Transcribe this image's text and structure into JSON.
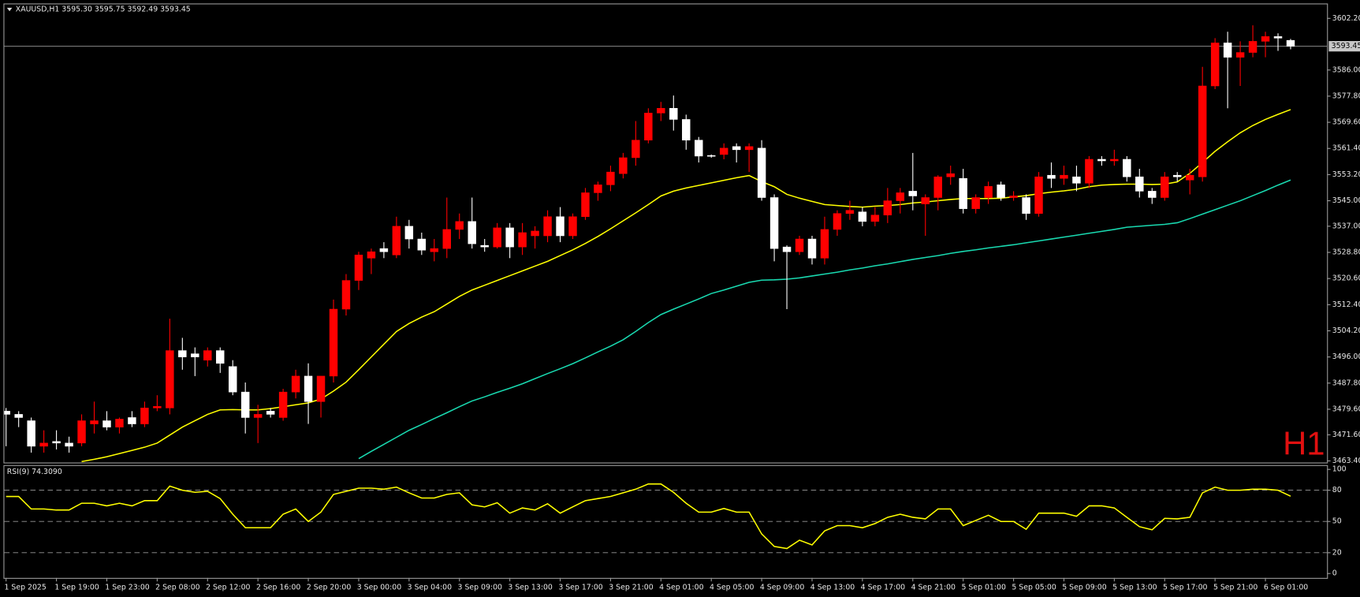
{
  "chart_data": [
    {
      "type": "candlestick",
      "title": "XAUUSD,H1  3595.30 3595.75 3592.49 3593.45",
      "watermark": "H1",
      "up_color": "#ff0000",
      "down_color": "#ffffff",
      "categories": [
        "1 Sep 2025",
        null,
        null,
        null,
        "1 Sep 19:00",
        null,
        null,
        null,
        "1 Sep 23:00",
        null,
        null,
        null,
        "2 Sep 08:00",
        null,
        null,
        null,
        "2 Sep 12:00",
        null,
        null,
        null,
        "2 Sep 16:00",
        null,
        null,
        null,
        "2 Sep 20:00",
        null,
        null,
        null,
        "3 Sep 00:00",
        null,
        null,
        null,
        "3 Sep 04:00",
        null,
        null,
        null,
        "3 Sep 09:00",
        null,
        null,
        null,
        "3 Sep 13:00",
        null,
        null,
        null,
        "3 Sep 17:00",
        null,
        null,
        null,
        "3 Sep 21:00",
        null,
        null,
        null,
        "4 Sep 01:00",
        null,
        null,
        null,
        "4 Sep 05:00",
        null,
        null,
        null,
        "4 Sep 09:00",
        null,
        null,
        null,
        "4 Sep 13:00",
        null,
        null,
        null,
        "4 Sep 17:00",
        null,
        null,
        null,
        "4 Sep 21:00",
        null,
        null,
        null,
        "5 Sep 01:00",
        null,
        null,
        null,
        "5 Sep 05:00",
        null,
        null,
        null,
        "5 Sep 09:00",
        null,
        null,
        null,
        "5 Sep 13:00",
        null,
        null,
        null,
        "5 Sep 17:00",
        null,
        null,
        null,
        "5 Sep 21:00",
        null,
        null,
        null,
        "6 Sep 01:00",
        null,
        null
      ],
      "open": [
        3479,
        3478,
        3476,
        3468,
        3469.5,
        3469,
        3469,
        3475,
        3476,
        3474,
        3477,
        3475,
        3480,
        3480,
        3498,
        3497,
        3495,
        3498,
        3493,
        3485,
        3477,
        3479,
        3477,
        3485,
        3490,
        3482,
        3490,
        3511,
        3520,
        3527,
        3530,
        3528,
        3537,
        3533,
        3529,
        3530,
        3536,
        3538.5,
        3531,
        3530.5,
        3536.5,
        3530.5,
        3534,
        3534,
        3540,
        3534,
        3540,
        3547.5,
        3550,
        3553.5,
        3558.5,
        3564,
        3572.5,
        3574,
        3570.5,
        3564,
        3559.2,
        3559.5,
        3562,
        3561,
        3561.5,
        3546,
        3530.5,
        3529,
        3533,
        3527,
        3536,
        3541,
        3541.5,
        3538.5,
        3540.5,
        3545,
        3548,
        3544,
        3546,
        3552.5,
        3552,
        3542.5,
        3546,
        3550,
        3546,
        3546,
        3541,
        3553,
        3552,
        3552.5,
        3550.5,
        3558,
        3557.5,
        3558,
        3552.5,
        3548,
        3546,
        3553,
        3551.5,
        3552.5,
        3581,
        3594.5,
        3590,
        3591.5,
        3595,
        3596.5,
        3595.3
      ],
      "high": [
        3480,
        3479,
        3477,
        3473,
        3473,
        3471,
        3478,
        3482,
        3479,
        3477,
        3479,
        3482,
        3484,
        3508,
        3502,
        3499,
        3499,
        3499,
        3495,
        3488,
        3481,
        3480,
        3486,
        3492,
        3494,
        3490,
        3514,
        3522,
        3529,
        3530,
        3532,
        3540,
        3539,
        3535,
        3533,
        3546,
        3541,
        3546,
        3533,
        3538,
        3538,
        3538,
        3537,
        3542,
        3543,
        3541,
        3549,
        3551,
        3556,
        3560,
        3570,
        3574,
        3576,
        3578,
        3572,
        3565,
        3559.5,
        3563,
        3563,
        3563,
        3564,
        3547,
        3531,
        3534,
        3534,
        3540,
        3542,
        3545,
        3543,
        3543,
        3549,
        3549,
        3560,
        3547,
        3553,
        3556,
        3555,
        3547,
        3551,
        3551,
        3548,
        3547,
        3554,
        3557,
        3556,
        3556,
        3559,
        3559,
        3561,
        3559,
        3555,
        3549,
        3554,
        3554,
        3555,
        3587,
        3596,
        3598,
        3595,
        3600,
        3598,
        3597.5,
        3595.75
      ],
      "low": [
        3468,
        3474,
        3466,
        3466,
        3467,
        3466,
        3468,
        3472,
        3473,
        3472,
        3474,
        3474,
        3479,
        3478,
        3492,
        3490,
        3493,
        3491,
        3484,
        3472,
        3469,
        3477,
        3476,
        3483,
        3475,
        3477,
        3488,
        3509,
        3517,
        3522,
        3527,
        3527,
        3530,
        3528,
        3526,
        3527,
        3533,
        3530,
        3529,
        3530,
        3527,
        3528,
        3530,
        3532,
        3532,
        3533,
        3539,
        3545,
        3548,
        3552,
        3556,
        3563,
        3570,
        3567,
        3561,
        3557,
        3558.5,
        3558,
        3557,
        3554,
        3545,
        3526,
        3511,
        3528,
        3525,
        3525,
        3534,
        3539,
        3537,
        3537,
        3538,
        3541,
        3542,
        3534,
        3542,
        3550,
        3541,
        3541,
        3544,
        3545,
        3545,
        3539,
        3540,
        3549,
        3550,
        3548,
        3549,
        3556,
        3556,
        3551,
        3546,
        3544,
        3545,
        3551,
        3547,
        3551,
        3580,
        3574,
        3581,
        3590,
        3590,
        3592,
        3592.49
      ],
      "close": [
        3478,
        3477,
        3468,
        3469,
        3469,
        3468,
        3476,
        3476,
        3474,
        3476.5,
        3475,
        3480,
        3480.5,
        3498,
        3496,
        3496,
        3498,
        3494,
        3485,
        3477,
        3478,
        3478,
        3485,
        3490,
        3482,
        3490,
        3511,
        3520,
        3528,
        3529,
        3529,
        3537,
        3533,
        3529.5,
        3530,
        3536,
        3538.5,
        3531.5,
        3530.5,
        3536.5,
        3530.5,
        3535,
        3535.5,
        3540,
        3534,
        3540,
        3547.5,
        3550,
        3554,
        3558.5,
        3564,
        3572.5,
        3574,
        3570.5,
        3564,
        3559,
        3559,
        3561.5,
        3561,
        3562,
        3546,
        3530,
        3529,
        3533,
        3527,
        3536,
        3541,
        3542,
        3538.5,
        3540.5,
        3545,
        3547.5,
        3546.5,
        3546,
        3552.5,
        3553.5,
        3542.5,
        3546,
        3549.5,
        3546,
        3546.5,
        3541,
        3552.5,
        3552,
        3553,
        3550.5,
        3558,
        3557.5,
        3558,
        3552.5,
        3548,
        3546,
        3552.5,
        3552.5,
        3553,
        3581,
        3594.5,
        3590,
        3591.5,
        3595,
        3596.5,
        3596,
        3593.45
      ],
      "series": [
        {
          "color": "#ffff00",
          "values": [
            null,
            null,
            null,
            null,
            null,
            null,
            3463.2,
            3463.9,
            3464.7,
            3465.7,
            3466.7,
            3467.7,
            3469,
            3471.5,
            3474,
            3476,
            3478,
            3479.4,
            3479.5,
            3479.4,
            3479.4,
            3479.8,
            3480.4,
            3481,
            3481.6,
            3482.8,
            3485.3,
            3488.1,
            3492,
            3496,
            3500,
            3504,
            3506.5,
            3508.5,
            3510.2,
            3512.6,
            3515,
            3517,
            3518.5,
            3520,
            3521.5,
            3523,
            3524.5,
            3526,
            3527.8,
            3529.6,
            3531.6,
            3533.8,
            3536.2,
            3538.7,
            3541.2,
            3543.8,
            3546.5,
            3548,
            3549,
            3549.8,
            3550.6,
            3551.4,
            3552.2,
            3552.9,
            3551,
            3549.4,
            3547,
            3545.8,
            3544.8,
            3543.8,
            3543.5,
            3543.2,
            3543,
            3543.3,
            3543.5,
            3543.8,
            3544.3,
            3544.6,
            3545,
            3545.4,
            3545.7,
            3545.7,
            3545.7,
            3545.8,
            3546.2,
            3546.6,
            3547.2,
            3547.7,
            3548.1,
            3548.6,
            3549.4,
            3549.9,
            3550.1,
            3550.2,
            3550.2,
            3550.1,
            3550.2,
            3550.9,
            3553.6,
            3557,
            3560.5,
            3563.5,
            3566.3,
            3568.6,
            3570.5,
            3572.1,
            3573.6
          ]
        },
        {
          "color": "#19d9b0",
          "values": [
            null,
            null,
            null,
            null,
            null,
            null,
            null,
            null,
            null,
            null,
            null,
            null,
            null,
            null,
            null,
            null,
            null,
            null,
            null,
            null,
            null,
            null,
            null,
            null,
            null,
            null,
            null,
            null,
            3464.1,
            3466.4,
            3468.6,
            3470.8,
            3473,
            3474.8,
            3476.7,
            3478.5,
            3480.4,
            3482.2,
            3483.5,
            3484.9,
            3486.2,
            3487.6,
            3489.2,
            3490.8,
            3492.3,
            3493.9,
            3495.7,
            3497.6,
            3499.4,
            3501.4,
            3504,
            3506.8,
            3509.3,
            3511,
            3512.6,
            3514.2,
            3515.9,
            3517,
            3518.2,
            3519.4,
            3520.1,
            3520.2,
            3520.4,
            3520.8,
            3521.4,
            3522,
            3522.6,
            3523.3,
            3523.9,
            3524.6,
            3525.2,
            3525.9,
            3526.6,
            3527.2,
            3527.8,
            3528.5,
            3529.1,
            3529.6,
            3530.2,
            3530.7,
            3531.2,
            3531.8,
            3532.4,
            3533,
            3533.6,
            3534.2,
            3534.8,
            3535.4,
            3536,
            3536.7,
            3537,
            3537.3,
            3537.6,
            3538.1,
            3539.4,
            3540.8,
            3542.2,
            3543.6,
            3545,
            3546.6,
            3548.2,
            3549.9,
            3551.5
          ]
        }
      ],
      "price_line": {
        "value": 3593.45,
        "label": "3593.45"
      },
      "ylim": [
        3462.9,
        3606.6
      ],
      "yticks": [
        {
          "value": 3602.2,
          "label": "3602.20"
        },
        {
          "value": 3586,
          "label": "3586.00"
        },
        {
          "value": 3577.8,
          "label": "3577.80"
        },
        {
          "value": 3569.6,
          "label": "3569.60"
        },
        {
          "value": 3561.4,
          "label": "3561.40"
        },
        {
          "value": 3553.2,
          "label": "3553.20"
        },
        {
          "value": 3545,
          "label": "3545.00"
        },
        {
          "value": 3537,
          "label": "3537.00"
        },
        {
          "value": 3528.8,
          "label": "3528.80"
        },
        {
          "value": 3520.6,
          "label": "3520.60"
        },
        {
          "value": 3512.4,
          "label": "3512.40"
        },
        {
          "value": 3504.2,
          "label": "3504.20"
        },
        {
          "value": 3496,
          "label": "3496.00"
        },
        {
          "value": 3487.8,
          "label": "3487.80"
        },
        {
          "value": 3479.6,
          "label": "3479.60"
        },
        {
          "value": 3471.6,
          "label": "3471.60"
        },
        {
          "value": 3463.4,
          "label": "3463.40"
        }
      ]
    },
    {
      "type": "line",
      "title": "RSI(9) 74.3090",
      "series": [
        {
          "color": "#ffff00",
          "values": [
            74,
            74,
            62,
            62,
            61,
            61,
            67.5,
            67.5,
            65,
            67.5,
            65,
            70,
            70,
            84,
            80,
            78,
            79,
            72,
            57,
            44,
            44,
            44,
            57,
            62,
            50,
            59,
            76,
            79,
            82,
            82,
            81,
            83,
            77.5,
            72.5,
            72.5,
            76,
            77.5,
            66,
            64,
            68,
            58,
            63,
            61,
            67,
            58,
            64,
            70,
            72,
            74,
            77.5,
            81,
            86,
            86,
            78,
            67.5,
            59,
            59,
            62.5,
            59,
            59,
            38,
            26,
            24,
            32,
            27.5,
            41,
            46,
            46,
            44,
            48,
            54,
            57,
            54,
            52.5,
            62,
            62,
            46,
            51,
            56,
            50,
            50,
            42.5,
            58,
            58,
            58,
            55,
            65,
            65,
            63,
            54,
            45,
            42,
            53,
            52.5,
            54,
            77.5,
            83,
            80,
            80,
            81,
            81,
            80,
            74.309
          ]
        }
      ],
      "levels": [
        20,
        50,
        80
      ],
      "ylim": [
        -4.2,
        103.3
      ],
      "yticks": [
        0,
        20,
        50,
        80,
        100
      ]
    }
  ]
}
